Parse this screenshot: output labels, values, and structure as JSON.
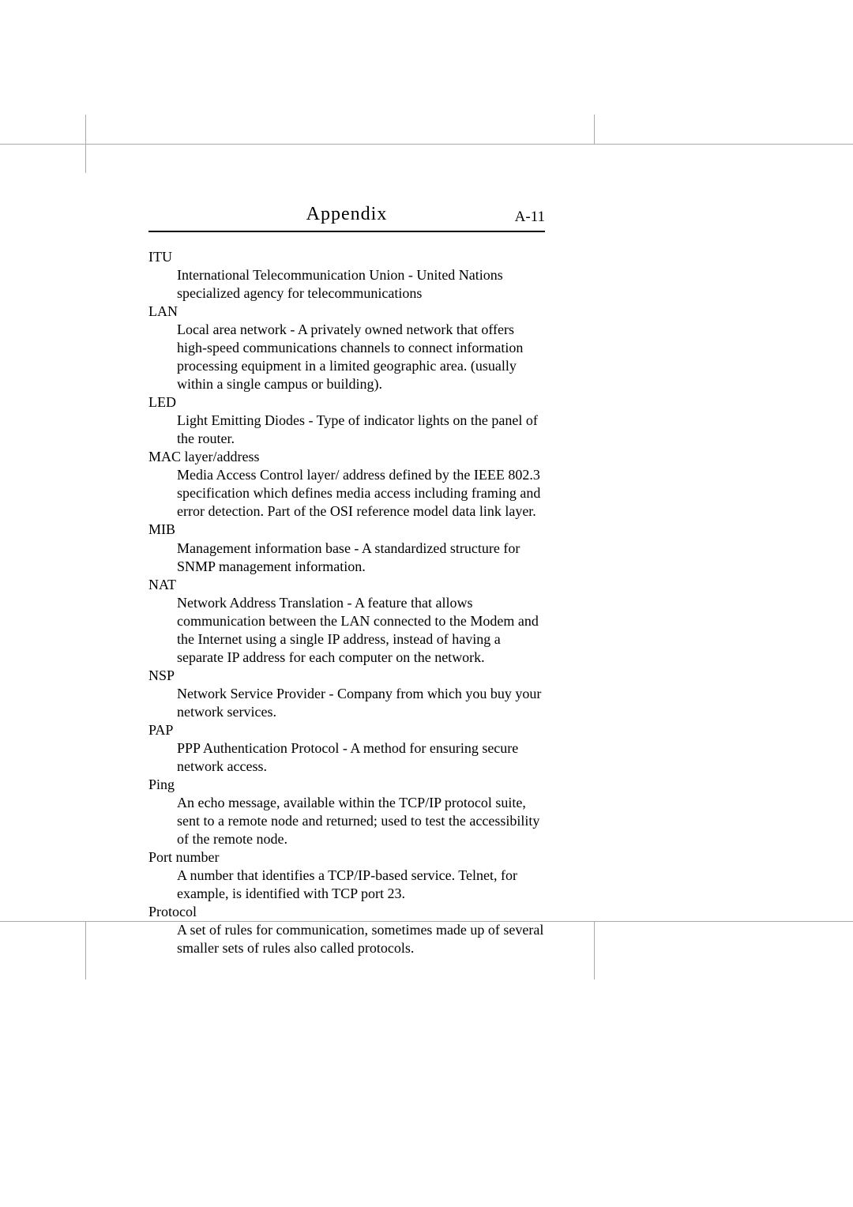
{
  "page": {
    "title": "Appendix",
    "number": "A-11",
    "font_family": "Times New Roman",
    "title_fontsize": 24,
    "body_fontsize": 18,
    "pagenum_fontsize": 19,
    "text_color": "#000000",
    "line_color": "#aaaaaa",
    "background_color": "#ffffff"
  },
  "glossary": [
    {
      "term": "ITU",
      "definition": "International Telecommunication Union - United Nations specialized agency for telecommunications"
    },
    {
      "term": "LAN",
      "definition": "Local area network - A privately owned network that offers high-speed communications channels to connect information processing equipment in a limited geographic area. (usually within a single campus or building)."
    },
    {
      "term": "LED",
      "definition": "Light Emitting Diodes - Type of indicator lights on the panel of the router."
    },
    {
      "term": "MAC layer/address",
      "definition": "Media Access Control layer/ address defined by the IEEE 802.3 specification which defines media access including framing and error detection. Part of the OSI reference model data link layer."
    },
    {
      "term": "MIB",
      "definition": "Management information base - A standardized structure for SNMP management information."
    },
    {
      "term": "NAT",
      "definition": "Network Address Translation - A feature that allows communication between the LAN connected to the Modem and the Internet using a single IP address, instead of having a separate IP address for each computer on the network."
    },
    {
      "term": "NSP",
      "definition": "Network Service Provider - Company from which you buy your network services."
    },
    {
      "term": "PAP",
      "definition": "PPP Authentication Protocol - A method for ensuring secure network access."
    },
    {
      "term": "Ping",
      "definition": "An echo message, available within the TCP/IP protocol suite, sent to a remote node and returned; used to test the accessibility of the remote node."
    },
    {
      "term": "Port number",
      "definition": "A number that identifies a TCP/IP-based service. Telnet, for example, is identified with TCP port 23."
    },
    {
      "term": "Protocol",
      "definition": "A set of rules for communication, sometimes made up of several smaller sets of rules also called protocols."
    }
  ]
}
